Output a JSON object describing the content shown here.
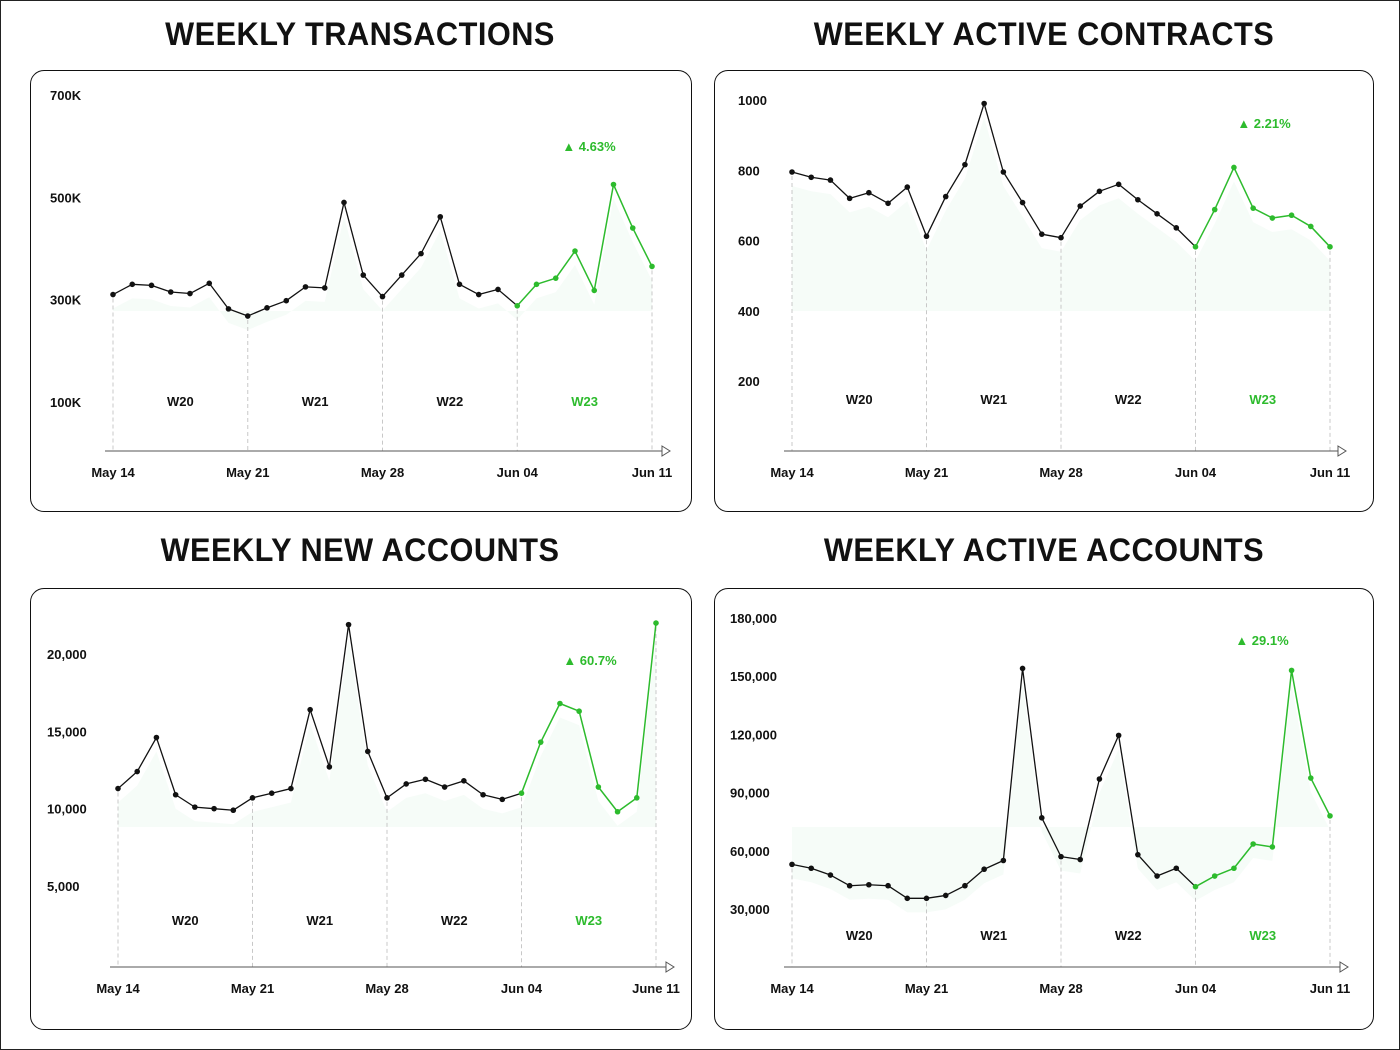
{
  "colors": {
    "default_line": "#111111",
    "highlight_line": "#2dbb2d",
    "week_divider": "#c8c8c8",
    "axis": "#555555"
  },
  "chart_data": [
    {
      "type": "line",
      "title": "WEEKLY TRANSACTIONS",
      "ytick_labels": [
        "700K",
        "500K",
        "300K",
        "100K"
      ],
      "ylim": [
        100000,
        700000
      ],
      "yticks": [
        700000,
        500000,
        300000,
        100000
      ],
      "xtick_labels": [
        "May 14",
        "May 21",
        "May 28",
        "Jun 04",
        "Jun 11"
      ],
      "week_labels": [
        "W20",
        "W21",
        "W22",
        "W23"
      ],
      "highlight_week": "W23",
      "change_label": "▲ 4.63%",
      "series": [
        {
          "values": [
            310000,
            330000,
            328000,
            315000,
            312000,
            332000,
            282000,
            268000,
            284000,
            298000,
            325000,
            323000,
            490000,
            348000,
            306000,
            348000,
            390000,
            462000,
            330000,
            310000,
            320000,
            288000,
            330000,
            342000,
            395000,
            318000,
            525000,
            440000,
            365000
          ]
        }
      ]
    },
    {
      "type": "line",
      "title": "WEEKLY ACTIVE CONTRACTS",
      "ytick_labels": [
        "1000",
        "800",
        "600",
        "400",
        "200"
      ],
      "ylim": [
        200,
        1000
      ],
      "yticks": [
        1000,
        800,
        600,
        400,
        200
      ],
      "xtick_labels": [
        "May 14",
        "May 21",
        "May 28",
        "Jun 04",
        "Jun 11"
      ],
      "week_labels": [
        "W20",
        "W21",
        "W22",
        "W23"
      ],
      "highlight_week": "W23",
      "change_label": "▲ 2.21%",
      "series": [
        {
          "values": [
            795,
            780,
            772,
            720,
            736,
            706,
            752,
            612,
            725,
            816,
            990,
            795,
            708,
            618,
            608,
            698,
            740,
            760,
            716,
            676,
            636,
            582,
            688,
            808,
            692,
            664,
            672,
            640,
            582
          ]
        }
      ]
    },
    {
      "type": "line",
      "title": "WEEKLY NEW ACCOUNTS",
      "ytick_labels": [
        "20,000",
        "15,000",
        "10,000",
        "5,000"
      ],
      "ylim": [
        5000,
        20000
      ],
      "yticks": [
        20000,
        15000,
        10000,
        5000
      ],
      "xtick_labels": [
        "May 14",
        "May 21",
        "May 28",
        "Jun 04",
        "June 11"
      ],
      "week_labels": [
        "W20",
        "W21",
        "W22",
        "W23"
      ],
      "highlight_week": "W23",
      "change_label": "▲ 60.7%",
      "series": [
        {
          "values": [
            11300,
            12400,
            14600,
            10900,
            10100,
            10000,
            9900,
            10700,
            11000,
            11300,
            16400,
            12700,
            21900,
            13700,
            10700,
            11600,
            11900,
            11400,
            11800,
            10900,
            10600,
            11000,
            14300,
            16800,
            16300,
            11400,
            9800,
            10700,
            22000
          ]
        }
      ]
    },
    {
      "type": "line",
      "title": "WEEKLY ACTIVE ACCOUNTS",
      "ytick_labels": [
        "180,000",
        "150,000",
        "120,000",
        "90,000",
        "60,000",
        "30,000"
      ],
      "ylim": [
        30000,
        180000
      ],
      "yticks": [
        180000,
        150000,
        120000,
        90000,
        60000,
        30000
      ],
      "xtick_labels": [
        "May 14",
        "May 21",
        "May 28",
        "Jun 04",
        "Jun 11"
      ],
      "week_labels": [
        "W20",
        "W21",
        "W22",
        "W23"
      ],
      "highlight_week": "W23",
      "change_label": "▲ 29.1%",
      "series": [
        {
          "values": [
            53000,
            51000,
            47500,
            42000,
            42500,
            42000,
            35500,
            35500,
            37000,
            42000,
            50500,
            55000,
            154000,
            77000,
            57000,
            55500,
            97000,
            119500,
            58000,
            47000,
            51000,
            41500,
            47000,
            51000,
            63500,
            62000,
            153000,
            97500,
            78000
          ]
        }
      ]
    }
  ]
}
